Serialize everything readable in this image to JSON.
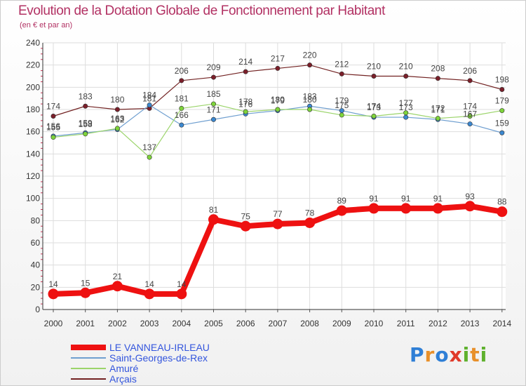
{
  "title": "Evolution de la Dotation Globale de Fonctionnement par Habitant",
  "subtitle": "(en € et par an)",
  "logo": [
    "P",
    "r",
    "o",
    "x",
    "i",
    "t",
    "i"
  ],
  "chart_data": {
    "type": "line",
    "x": [
      2000,
      2001,
      2002,
      2003,
      2004,
      2005,
      2006,
      2007,
      2008,
      2009,
      2010,
      2011,
      2012,
      2013,
      2014
    ],
    "x_ticks": [
      "2000",
      "2001",
      "2002",
      "2003",
      "2004",
      "2005",
      "2006",
      "2007",
      "2008",
      "2009",
      "2010",
      "2011",
      "2012",
      "2013",
      "2014"
    ],
    "y_ticks": [
      "0",
      "20",
      "40",
      "60",
      "80",
      "100",
      "120",
      "140",
      "160",
      "180",
      "200",
      "220",
      "240"
    ],
    "ylim": [
      0,
      240
    ],
    "grid": true,
    "legend_position": "bottom-left",
    "series": [
      {
        "name": "Arçais",
        "color": "#722222",
        "point_color": "#7b1f2a",
        "values": [
          174,
          183,
          180,
          181,
          206,
          209,
          214,
          217,
          220,
          212,
          210,
          210,
          208,
          206,
          198
        ],
        "labels": [
          "174",
          "183",
          "180",
          "181",
          "206",
          "209",
          "214",
          "217",
          "220",
          "212",
          "210",
          "210",
          "208",
          "206",
          "198"
        ]
      },
      {
        "name": "Saint-Georges-de-Rex",
        "color": "#6f9fd0",
        "point_color": "#3c88d0",
        "values": [
          156,
          159,
          162,
          184,
          166,
          171,
          176,
          179,
          183,
          179,
          173,
          173,
          171,
          167,
          159
        ],
        "labels": [
          "156",
          "159",
          "162",
          "184",
          "166",
          "171",
          "176",
          "179",
          "183",
          "179",
          "173",
          "173",
          "171",
          "167",
          "159"
        ]
      },
      {
        "name": "Amuré",
        "color": "#9bd46a",
        "point_color": "#7ed43a",
        "values": [
          155,
          158,
          163,
          137,
          181,
          185,
          178,
          180,
          180,
          175,
          174,
          177,
          172,
          174,
          179
        ],
        "labels": [
          "155",
          "158",
          "163",
          "137",
          "181",
          "185",
          "178",
          "180",
          "180",
          "175",
          "174",
          "177",
          "172",
          "174",
          "179"
        ]
      },
      {
        "name": "LE VANNEAU-IRLEAU",
        "color": "#ee1111",
        "point_color": "#ee1111",
        "values": [
          14,
          15,
          21,
          14,
          14,
          81,
          75,
          77,
          78,
          89,
          91,
          91,
          91,
          93,
          88
        ],
        "labels": [
          "14",
          "15",
          "21",
          "14",
          "14",
          "81",
          "75",
          "77",
          "78",
          "89",
          "91",
          "91",
          "91",
          "93",
          "88"
        ]
      }
    ],
    "legend": [
      {
        "name": "LE VANNEAU-IRLEAU",
        "color": "#ee1111",
        "text_color": "#3355dd"
      },
      {
        "name": "Saint-Georges-de-Rex",
        "color": "#6f9fd0",
        "text_color": "#3355dd"
      },
      {
        "name": "Amuré",
        "color": "#9bd46a",
        "text_color": "#3355dd"
      },
      {
        "name": "Arçais",
        "color": "#722222",
        "text_color": "#3355dd"
      }
    ]
  }
}
